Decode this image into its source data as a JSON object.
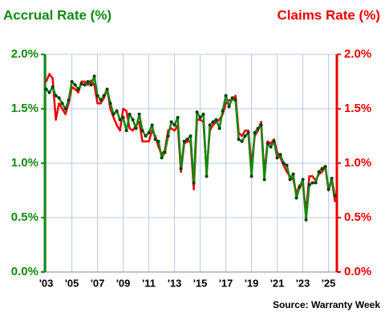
{
  "chart_data": {
    "type": "line",
    "title_left": "Accrual Rate (%)",
    "title_right": "Claims Rate (%)",
    "source": "Source: Warranty Week",
    "x": [
      2003,
      2003.25,
      2003.5,
      2003.75,
      2004,
      2004.25,
      2004.5,
      2004.75,
      2005,
      2005.25,
      2005.5,
      2005.75,
      2006,
      2006.25,
      2006.5,
      2006.75,
      2007,
      2007.25,
      2007.5,
      2007.75,
      2008,
      2008.25,
      2008.5,
      2008.75,
      2009,
      2009.25,
      2009.5,
      2009.75,
      2010,
      2010.25,
      2010.5,
      2010.75,
      2011,
      2011.25,
      2011.5,
      2011.75,
      2012,
      2012.25,
      2012.5,
      2012.75,
      2013,
      2013.25,
      2013.5,
      2013.75,
      2014,
      2014.25,
      2014.5,
      2014.75,
      2015,
      2015.25,
      2015.5,
      2015.75,
      2016,
      2016.25,
      2016.5,
      2016.75,
      2017,
      2017.25,
      2017.5,
      2017.75,
      2018,
      2018.25,
      2018.5,
      2018.75,
      2019,
      2019.25,
      2019.5,
      2019.75,
      2020,
      2020.25,
      2020.5,
      2020.75,
      2021,
      2021.25,
      2021.5,
      2021.75,
      2022,
      2022.25,
      2022.5,
      2022.75,
      2023,
      2023.25,
      2023.5,
      2023.75,
      2024,
      2024.25,
      2024.5,
      2024.75,
      2025,
      2025.25,
      2025.5
    ],
    "series": [
      {
        "name": "Claims Rate (%)",
        "color": "#ee0000",
        "axis": "y2",
        "values": [
          1.75,
          1.82,
          1.78,
          1.4,
          1.55,
          1.5,
          1.45,
          1.55,
          1.7,
          1.68,
          1.65,
          1.75,
          1.75,
          1.72,
          1.76,
          1.72,
          1.55,
          1.55,
          1.6,
          1.68,
          1.5,
          1.42,
          1.35,
          1.3,
          1.5,
          1.48,
          1.32,
          1.3,
          1.35,
          1.38,
          1.2,
          1.2,
          1.2,
          1.3,
          1.25,
          1.15,
          1.08,
          1.12,
          1.3,
          1.32,
          1.3,
          1.35,
          0.92,
          1.18,
          1.2,
          1.2,
          0.76,
          1.4,
          1.4,
          1.38,
          0.92,
          1.3,
          1.35,
          1.38,
          1.4,
          1.45,
          1.55,
          1.58,
          1.58,
          1.62,
          1.28,
          1.25,
          1.3,
          1.3,
          0.98,
          1.25,
          1.3,
          1.38,
          0.9,
          1.2,
          1.18,
          1.22,
          1.1,
          1.05,
          0.98,
          0.92,
          0.88,
          0.85,
          0.72,
          0.8,
          0.8,
          0.55,
          0.88,
          0.88,
          0.84,
          0.9,
          0.92,
          0.97,
          0.75,
          0.85,
          0.65
        ]
      },
      {
        "name": "Accrual Rate (%)",
        "color": "#118811",
        "marker_color": "#0b3d0b",
        "values": [
          1.68,
          1.65,
          1.7,
          1.62,
          1.6,
          1.55,
          1.5,
          1.58,
          1.75,
          1.72,
          1.68,
          1.73,
          1.72,
          1.75,
          1.72,
          1.8,
          1.62,
          1.58,
          1.62,
          1.68,
          1.55,
          1.45,
          1.48,
          1.4,
          1.42,
          1.3,
          1.45,
          1.4,
          1.32,
          1.45,
          1.3,
          1.25,
          1.28,
          1.35,
          1.22,
          1.2,
          1.05,
          1.1,
          1.25,
          1.38,
          1.35,
          1.42,
          0.95,
          1.2,
          1.22,
          1.25,
          0.82,
          1.47,
          1.42,
          1.45,
          0.88,
          1.35,
          1.38,
          1.4,
          1.32,
          1.48,
          1.62,
          1.52,
          1.6,
          1.58,
          1.22,
          1.2,
          1.25,
          1.28,
          0.88,
          1.28,
          1.32,
          1.35,
          0.85,
          1.18,
          1.15,
          1.2,
          1.05,
          1.08,
          1.0,
          0.98,
          0.85,
          0.9,
          0.68,
          0.78,
          0.85,
          0.48,
          0.8,
          0.82,
          0.82,
          0.92,
          0.95,
          0.97,
          0.76,
          0.86,
          0.7
        ]
      }
    ],
    "xlim": [
      2002.9,
      2025.65
    ],
    "xticks": [
      {
        "value": 2003,
        "label": "'03"
      },
      {
        "value": 2005,
        "label": "'05"
      },
      {
        "value": 2007,
        "label": "'07"
      },
      {
        "value": 2009,
        "label": "'09"
      },
      {
        "value": 2011,
        "label": "'11"
      },
      {
        "value": 2013,
        "label": "'13"
      },
      {
        "value": 2015,
        "label": "'15"
      },
      {
        "value": 2017,
        "label": "'17"
      },
      {
        "value": 2019,
        "label": "'19"
      },
      {
        "value": 2021,
        "label": "'21"
      },
      {
        "value": 2023,
        "label": "'23"
      },
      {
        "value": 2025,
        "label": "'25"
      }
    ],
    "ylim": [
      0,
      2
    ],
    "yticks": [
      {
        "value": 0,
        "label": "0.0%"
      },
      {
        "value": 0.5,
        "label": "0.5%"
      },
      {
        "value": 1,
        "label": "1.0%"
      },
      {
        "value": 1.5,
        "label": "1.5%"
      },
      {
        "value": 2,
        "label": "2.0%"
      }
    ],
    "y2lim": [
      0,
      2
    ],
    "y2ticks": [
      {
        "value": 0,
        "label": "0.0%"
      },
      {
        "value": 0.5,
        "label": "0.5%"
      },
      {
        "value": 1,
        "label": "1.0%"
      },
      {
        "value": 1.5,
        "label": "1.5%"
      },
      {
        "value": 2,
        "label": "2.0%"
      }
    ],
    "grid": true
  }
}
